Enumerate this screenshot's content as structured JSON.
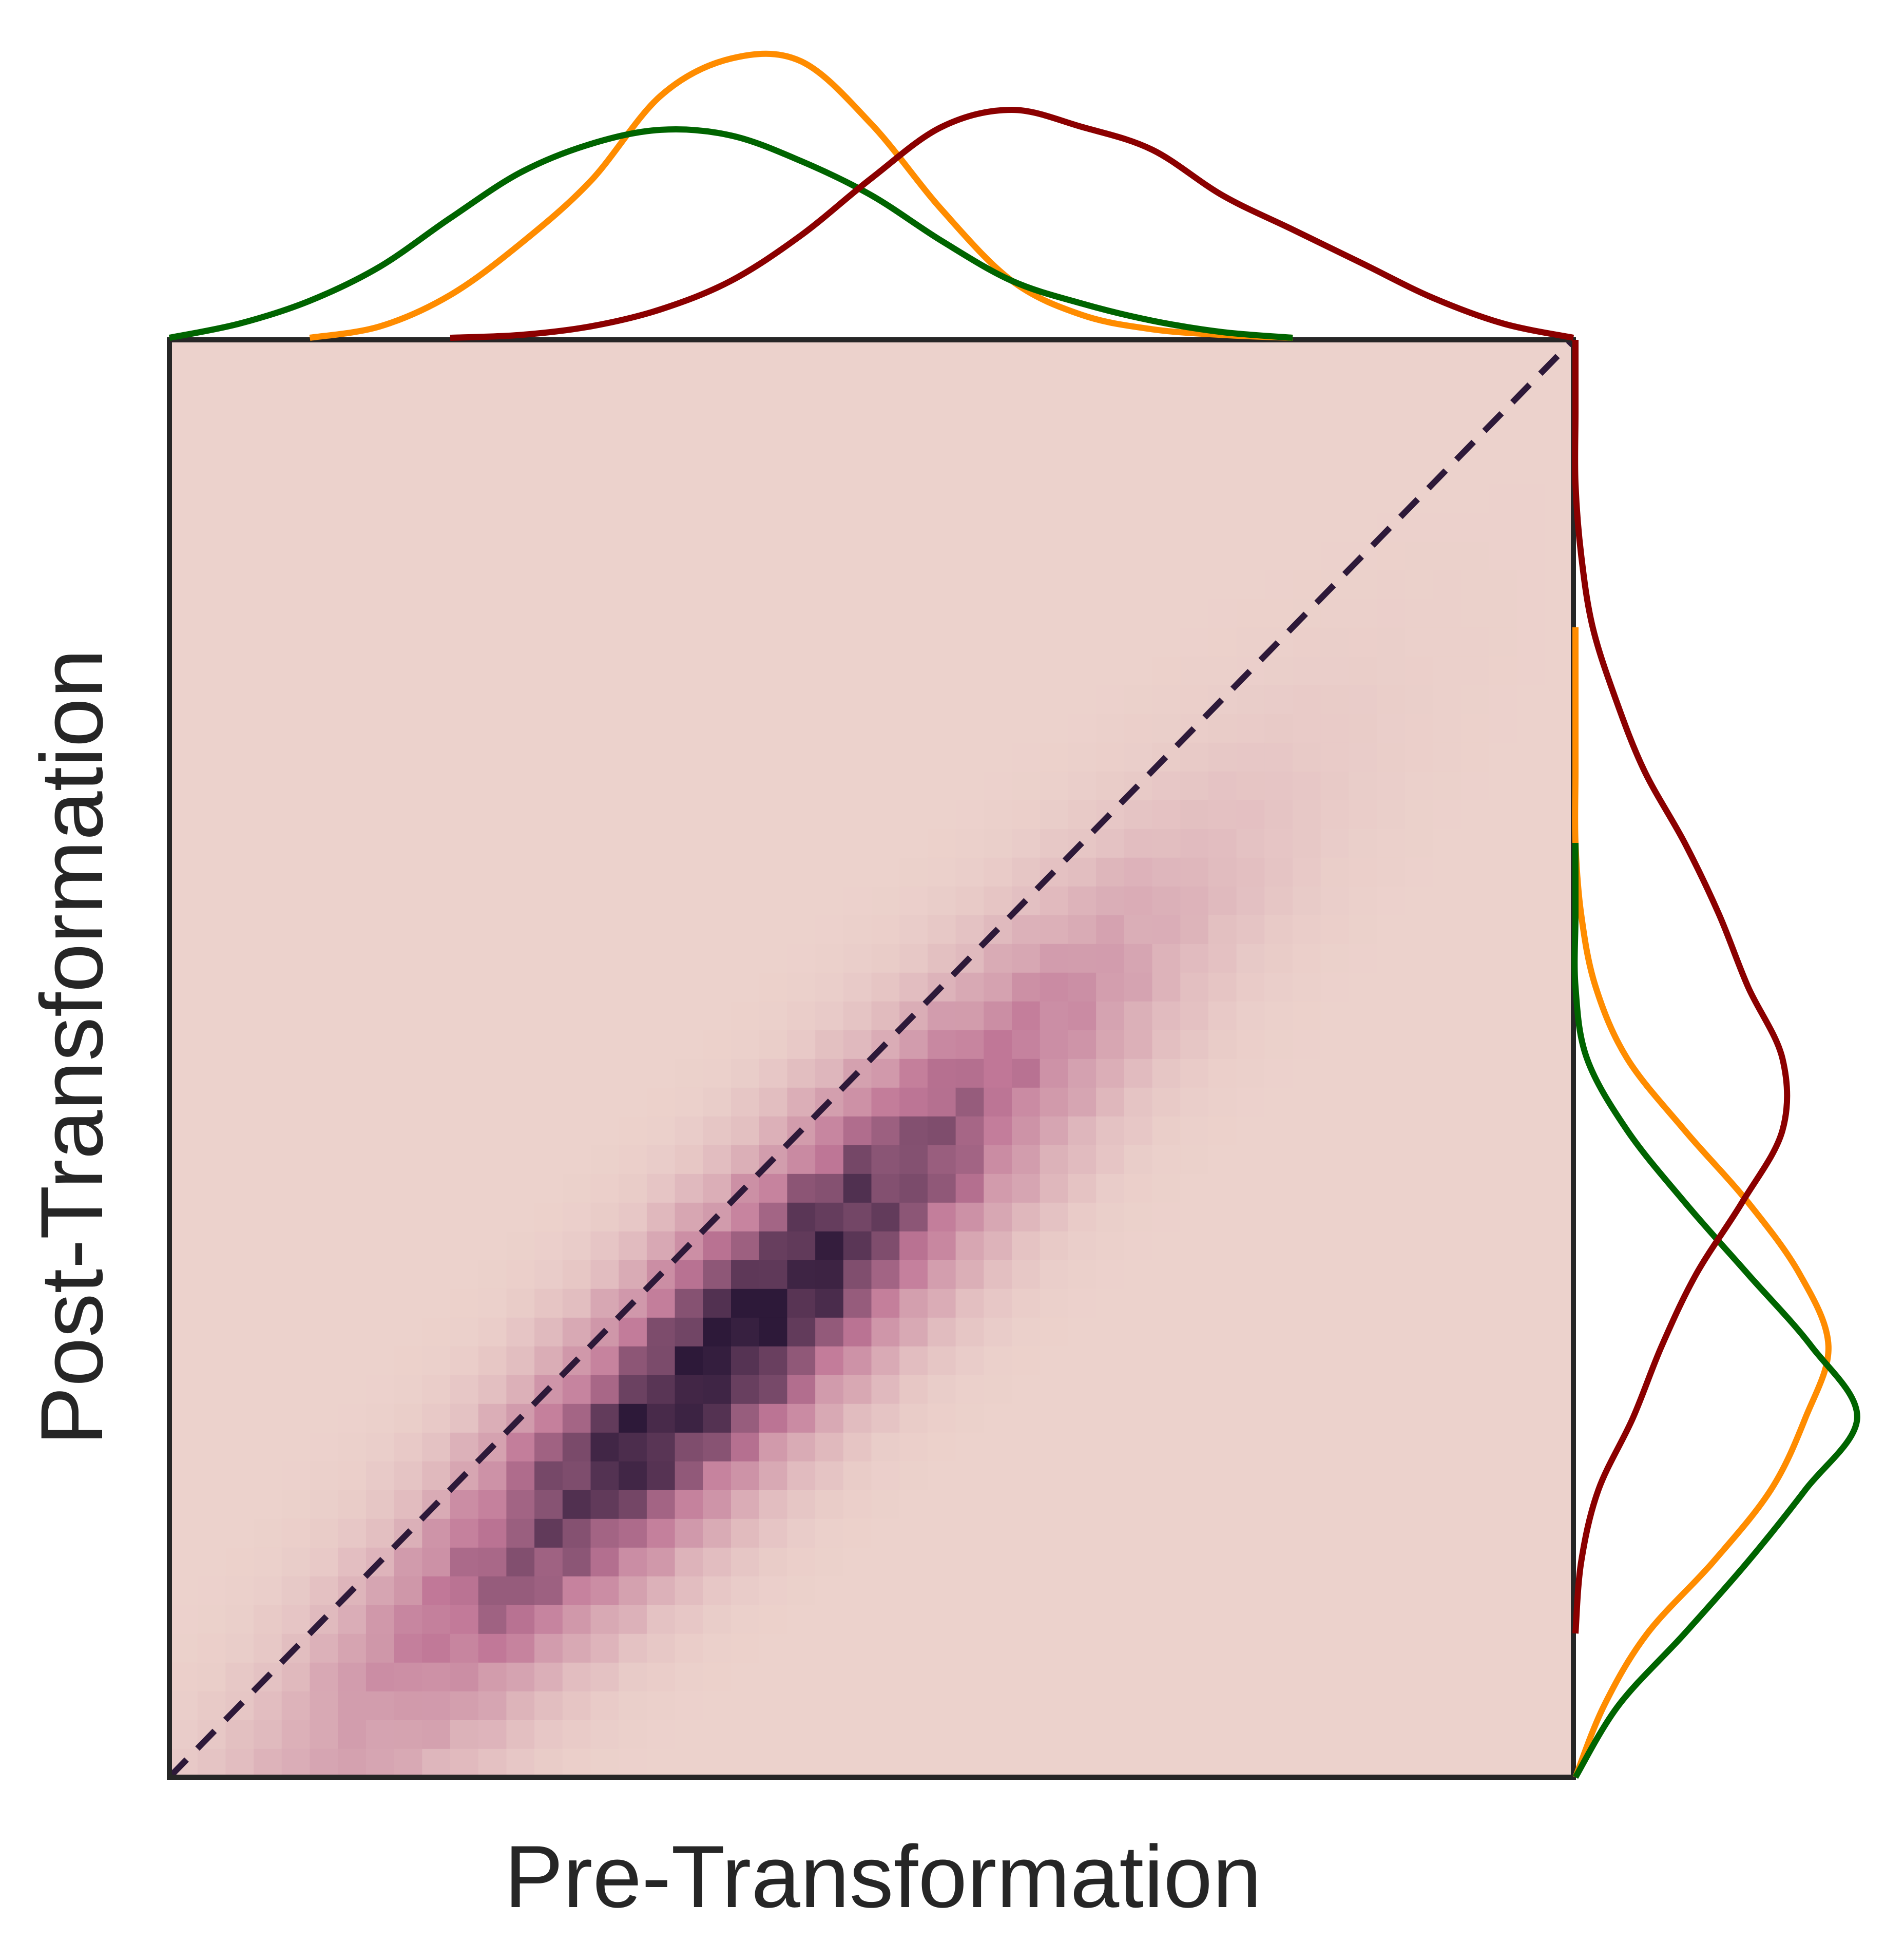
{
  "chart_data": {
    "type": "heatmap",
    "title": "",
    "xlabel": "Pre-Transformation",
    "ylabel": "Post-Transformation",
    "ticks_shown": false,
    "legend": "none",
    "grid": false,
    "xlim": [
      0,
      1
    ],
    "ylim": [
      0,
      1
    ],
    "colormap": {
      "low": "#ecd2cc",
      "mid": "#c07797",
      "high": "#2d1939"
    },
    "heatmap": {
      "bins": 50,
      "description_values": "2D density of paired values concentrated along the identity line",
      "density_center": [
        0.4,
        0.3
      ],
      "density_spread_along_diagonal": 0.22,
      "density_spread_across_diagonal": 0.045
    },
    "reference_line": {
      "type": "identity",
      "style": "dashed",
      "color": "#2d1939",
      "from": [
        0,
        0
      ],
      "to": [
        1,
        1
      ]
    },
    "marginals": {
      "top": [
        {
          "color": "#ff8c00",
          "x": [
            0.1,
            0.15,
            0.2,
            0.25,
            0.3,
            0.35,
            0.4,
            0.45,
            0.5,
            0.55,
            0.6,
            0.65,
            0.7,
            0.75,
            0.8
          ],
          "y": [
            0.0,
            0.04,
            0.15,
            0.33,
            0.55,
            0.85,
            0.98,
            0.97,
            0.75,
            0.45,
            0.2,
            0.08,
            0.03,
            0.01,
            0.0
          ]
        },
        {
          "color": "#006400",
          "x": [
            0.0,
            0.05,
            0.1,
            0.15,
            0.2,
            0.25,
            0.3,
            0.35,
            0.4,
            0.45,
            0.5,
            0.55,
            0.6,
            0.65,
            0.7,
            0.75,
            0.8
          ],
          "y": [
            0.0,
            0.05,
            0.13,
            0.25,
            0.42,
            0.58,
            0.68,
            0.73,
            0.71,
            0.62,
            0.5,
            0.34,
            0.2,
            0.12,
            0.06,
            0.02,
            0.0
          ]
        },
        {
          "color": "#8b0000",
          "x": [
            0.2,
            0.25,
            0.3,
            0.35,
            0.4,
            0.45,
            0.5,
            0.55,
            0.6,
            0.65,
            0.7,
            0.75,
            0.8,
            0.85,
            0.9,
            0.95,
            1.0
          ],
          "y": [
            0.0,
            0.01,
            0.04,
            0.1,
            0.2,
            0.36,
            0.56,
            0.74,
            0.8,
            0.74,
            0.66,
            0.5,
            0.38,
            0.26,
            0.14,
            0.05,
            0.0
          ]
        }
      ],
      "right": [
        {
          "color": "#ff8c00",
          "y": [
            0.0,
            0.05,
            0.1,
            0.15,
            0.2,
            0.25,
            0.3,
            0.35,
            0.4,
            0.45,
            0.5,
            0.55,
            0.6,
            0.65,
            0.7,
            0.75,
            0.8
          ],
          "x": [
            0.0,
            0.1,
            0.25,
            0.48,
            0.68,
            0.8,
            0.88,
            0.78,
            0.6,
            0.38,
            0.18,
            0.07,
            0.02,
            0.0,
            0.0,
            0.0,
            0.0
          ]
        },
        {
          "color": "#006400",
          "y": [
            0.0,
            0.05,
            0.1,
            0.15,
            0.2,
            0.25,
            0.3,
            0.35,
            0.4,
            0.45,
            0.5,
            0.55,
            0.6,
            0.65
          ],
          "x": [
            0.0,
            0.15,
            0.38,
            0.6,
            0.8,
            0.98,
            0.82,
            0.6,
            0.38,
            0.18,
            0.04,
            0.0,
            0.0,
            0.0
          ]
        },
        {
          "color": "#8b0000",
          "y": [
            0.1,
            0.15,
            0.2,
            0.25,
            0.3,
            0.35,
            0.4,
            0.45,
            0.5,
            0.55,
            0.6,
            0.65,
            0.7,
            0.75,
            0.8,
            0.85,
            0.9,
            0.95,
            1.0
          ],
          "x": [
            0.0,
            0.02,
            0.08,
            0.2,
            0.3,
            0.42,
            0.58,
            0.72,
            0.72,
            0.6,
            0.5,
            0.38,
            0.24,
            0.14,
            0.06,
            0.02,
            0.0,
            0.0,
            0.0
          ]
        }
      ]
    }
  }
}
